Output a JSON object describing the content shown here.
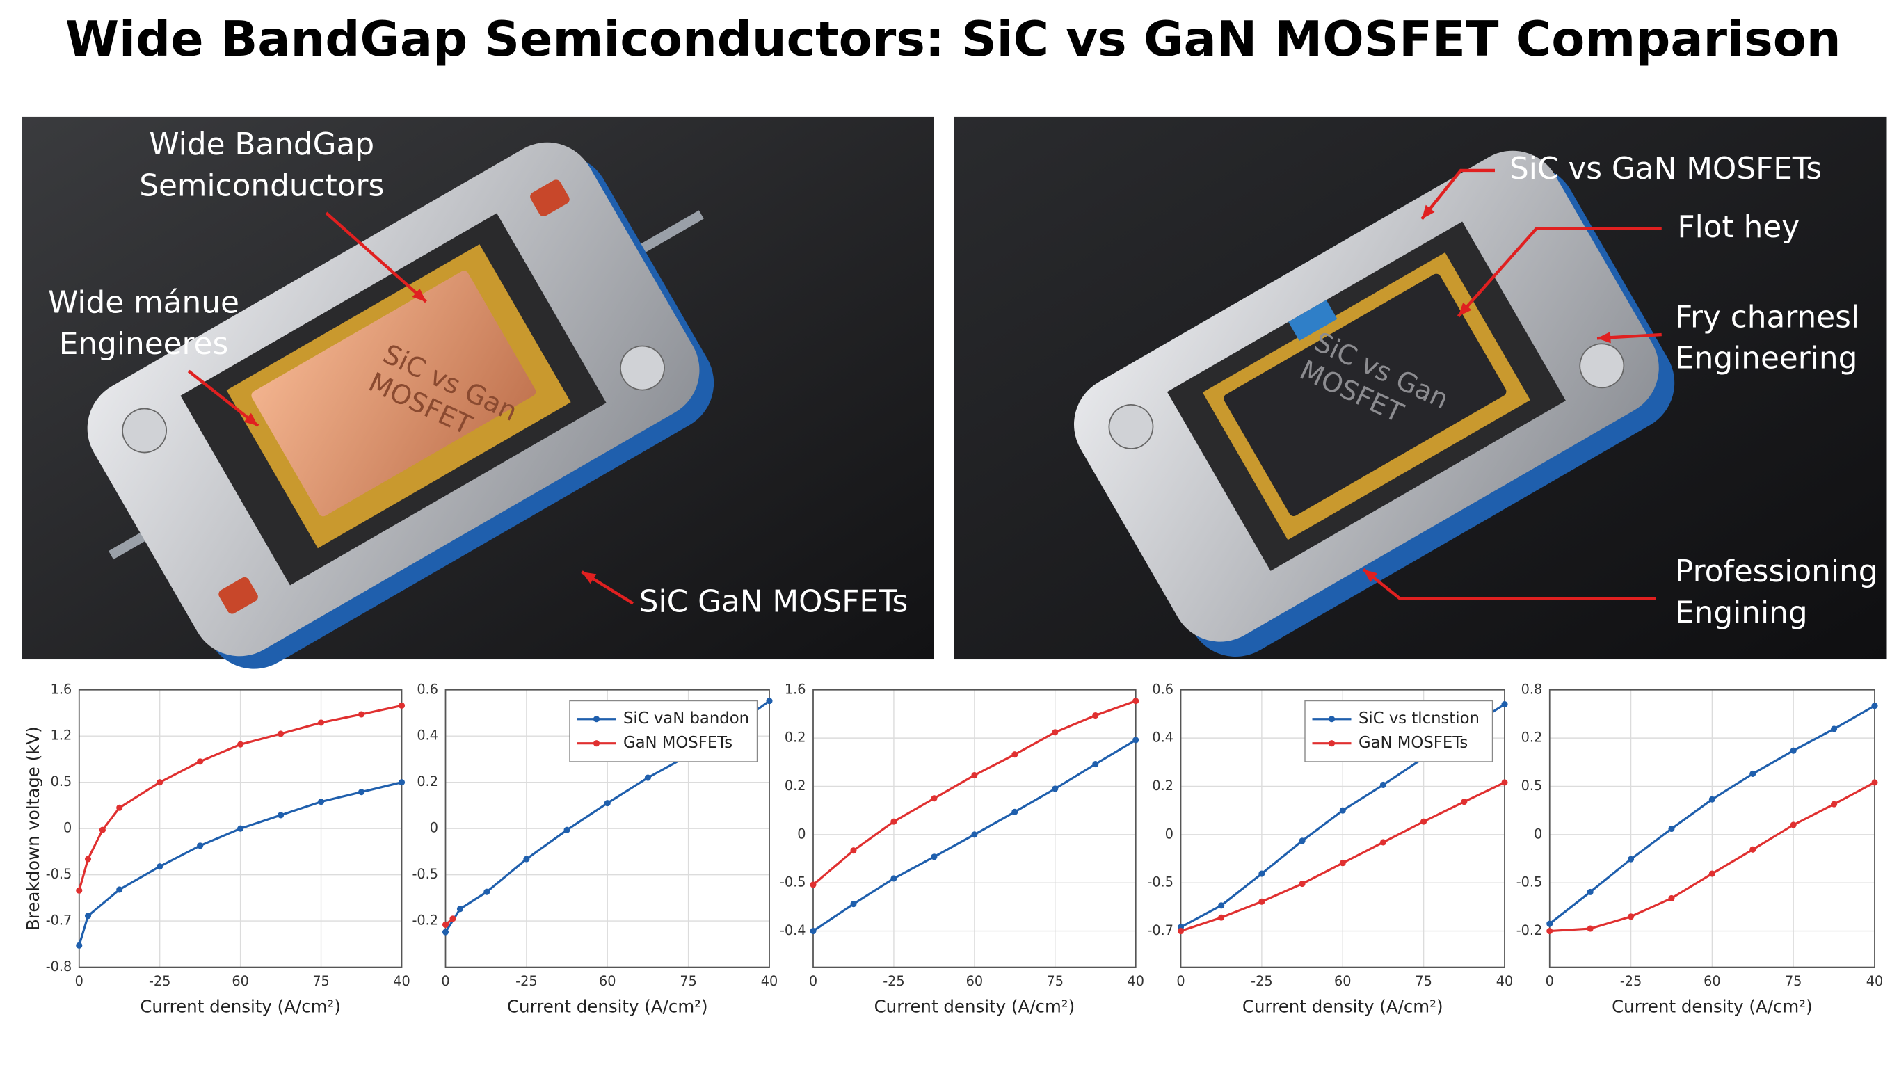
{
  "title": "Wide BandGap Semiconductors: SiC vs GaN MOSFET Comparison",
  "photos": [
    {
      "chip_label": [
        "SiC vs Gan",
        "MOSFET"
      ],
      "callouts": [
        {
          "lines": [
            "Wide BandGap",
            "Semiconductors"
          ]
        },
        {
          "lines": [
            "Wide mánue",
            "Engineeres"
          ]
        },
        {
          "lines": [
            "SiC GaN MOSFETs"
          ]
        }
      ]
    },
    {
      "chip_label": [
        "SiC vs Gan",
        "MOSFET"
      ],
      "callouts": [
        {
          "lines": [
            "SiC vs GaN MOSFETs"
          ]
        },
        {
          "lines": [
            "Flot hey"
          ]
        },
        {
          "lines": [
            "Fry charnesl",
            "Engineering"
          ]
        },
        {
          "lines": [
            "Professioning",
            "Engining"
          ]
        }
      ]
    }
  ],
  "chart_data": [
    {
      "type": "line",
      "ylabel": "Breakdown voltage (kV)",
      "xlabel": "Current density (A/cm²)",
      "grid": true,
      "xlim": [
        0,
        4
      ],
      "xticks": [
        {
          "value": 0,
          "label": "0"
        },
        {
          "value": 1,
          "label": "-25"
        },
        {
          "value": 2,
          "label": "60"
        },
        {
          "value": 3,
          "label": "75"
        },
        {
          "value": 4,
          "label": "40"
        }
      ],
      "ylim": [
        0,
        6
      ],
      "yticks": [
        {
          "value": 0,
          "label": "-0.8"
        },
        {
          "value": 1,
          "label": "-0.7"
        },
        {
          "value": 2,
          "label": "-0.5"
        },
        {
          "value": 3,
          "label": "0"
        },
        {
          "value": 4,
          "label": "0.5"
        },
        {
          "value": 5,
          "label": "1.2"
        },
        {
          "value": 6,
          "label": "1.6"
        }
      ],
      "series": [
        {
          "color": "#1f5fad",
          "x": [
            0,
            0.11,
            0.5,
            1.0,
            1.5,
            2.0,
            2.5,
            3.0,
            3.5,
            4.0
          ],
          "values": [
            0.47,
            1.11,
            1.68,
            2.18,
            2.63,
            3.0,
            3.29,
            3.58,
            3.79,
            4.0
          ]
        },
        {
          "color": "#e03030",
          "x": [
            0,
            0.11,
            0.29,
            0.5,
            1.0,
            1.5,
            2.0,
            2.5,
            3.0,
            3.5,
            4.0
          ],
          "values": [
            1.66,
            2.34,
            2.97,
            3.45,
            4.0,
            4.45,
            4.82,
            5.05,
            5.29,
            5.47,
            5.66
          ]
        }
      ]
    },
    {
      "type": "line",
      "xlabel": "Current density (A/cm²)",
      "grid": true,
      "legend": "upper right",
      "xlim": [
        0,
        4
      ],
      "xticks": [
        {
          "value": 0,
          "label": "0"
        },
        {
          "value": 1,
          "label": "-25"
        },
        {
          "value": 2,
          "label": "60"
        },
        {
          "value": 3,
          "label": "75"
        },
        {
          "value": 4,
          "label": "40"
        }
      ],
      "ylim": [
        0,
        6
      ],
      "yticks": [
        {
          "value": 1,
          "label": "-0.2"
        },
        {
          "value": 2,
          "label": "-0.5"
        },
        {
          "value": 3,
          "label": "0"
        },
        {
          "value": 4,
          "label": "0.2"
        },
        {
          "value": 5,
          "label": "0.4"
        },
        {
          "value": 6,
          "label": "0.6"
        }
      ],
      "series": [
        {
          "name": "SiC vaN bandon",
          "color": "#1f5fad",
          "x": [
            0,
            0.18,
            0.51,
            1.0,
            1.5,
            2.0,
            2.5,
            3.0,
            3.5,
            4.0
          ],
          "values": [
            0.76,
            1.26,
            1.63,
            2.34,
            2.97,
            3.55,
            4.1,
            4.58,
            5.13,
            5.76
          ]
        },
        {
          "name": "GaN MOSFETs",
          "color": "#e03030",
          "x": [
            0,
            0.09
          ],
          "values": [
            0.92,
            1.05
          ]
        }
      ]
    },
    {
      "type": "line",
      "xlabel": "Current density (A/cm²)",
      "grid": true,
      "xlim": [
        0,
        4
      ],
      "xticks": [
        {
          "value": 0,
          "label": "0"
        },
        {
          "value": 1,
          "label": "-25"
        },
        {
          "value": 2,
          "label": "60"
        },
        {
          "value": 3,
          "label": "75"
        },
        {
          "value": 4,
          "label": "40"
        }
      ],
      "ylim": [
        -0.75,
        5
      ],
      "yticks": [
        {
          "value": 0,
          "label": "-0.4"
        },
        {
          "value": 1,
          "label": "-0.5"
        },
        {
          "value": 2,
          "label": "0"
        },
        {
          "value": 3,
          "label": "0.2"
        },
        {
          "value": 4,
          "label": "0.2"
        },
        {
          "value": 5,
          "label": "1.6"
        }
      ],
      "series": [
        {
          "color": "#1f5fad",
          "x": [
            0,
            0.5,
            1.0,
            1.5,
            2.0,
            2.5,
            3.0,
            3.5,
            4.0
          ],
          "values": [
            0,
            0.56,
            1.09,
            1.54,
            2.0,
            2.47,
            2.95,
            3.46,
            3.96
          ]
        },
        {
          "color": "#e03030",
          "x": [
            0,
            0.5,
            1.0,
            1.5,
            2.0,
            2.5,
            3.0,
            3.5,
            4.0
          ],
          "values": [
            0.96,
            1.67,
            2.27,
            2.75,
            3.23,
            3.66,
            4.12,
            4.47,
            4.77
          ]
        }
      ]
    },
    {
      "type": "line",
      "xlabel": "Current density (A/cm²)",
      "grid": true,
      "legend": "upper right",
      "xlim": [
        0,
        4
      ],
      "xticks": [
        {
          "value": 0,
          "label": "0"
        },
        {
          "value": 1,
          "label": "-25"
        },
        {
          "value": 2,
          "label": "60"
        },
        {
          "value": 3,
          "label": "75"
        },
        {
          "value": 4,
          "label": "40"
        }
      ],
      "ylim": [
        -0.75,
        5
      ],
      "yticks": [
        {
          "value": 0,
          "label": "-0.7"
        },
        {
          "value": 1,
          "label": "-0.5"
        },
        {
          "value": 2,
          "label": "0"
        },
        {
          "value": 3,
          "label": "0.2"
        },
        {
          "value": 4,
          "label": "0.4"
        },
        {
          "value": 5,
          "label": "0.6"
        }
      ],
      "series": [
        {
          "name": "SiC vs tlcnstion",
          "color": "#1f5fad",
          "x": [
            0,
            0.5,
            1.0,
            1.5,
            2.0,
            2.5,
            3.0,
            3.5,
            4.0
          ],
          "values": [
            0.08,
            0.53,
            1.19,
            1.87,
            2.5,
            3.03,
            3.59,
            4.17,
            4.7
          ]
        },
        {
          "name": "GaN MOSFETs",
          "color": "#e03030",
          "x": [
            0,
            0.5,
            1.0,
            1.5,
            2.0,
            2.5,
            3.0,
            3.5,
            4.0
          ],
          "values": [
            0,
            0.28,
            0.61,
            0.98,
            1.41,
            1.84,
            2.27,
            2.68,
            3.08
          ]
        }
      ]
    },
    {
      "type": "line",
      "xlabel": "Current density (A/cm²)",
      "grid": true,
      "xlim": [
        0,
        4
      ],
      "xticks": [
        {
          "value": 0,
          "label": "0"
        },
        {
          "value": 1,
          "label": "-25"
        },
        {
          "value": 2,
          "label": "60"
        },
        {
          "value": 3,
          "label": "75"
        },
        {
          "value": 4,
          "label": "40"
        }
      ],
      "ylim": [
        -0.75,
        5
      ],
      "yticks": [
        {
          "value": 0,
          "label": "-0.2"
        },
        {
          "value": 1,
          "label": "-0.5"
        },
        {
          "value": 2,
          "label": "0"
        },
        {
          "value": 3,
          "label": "0.5"
        },
        {
          "value": 4,
          "label": "0.2"
        },
        {
          "value": 5,
          "label": "0.8"
        }
      ],
      "series": [
        {
          "color": "#1f5fad",
          "x": [
            0,
            0.5,
            1.0,
            1.5,
            2.0,
            2.5,
            3.0,
            3.5,
            4.0
          ],
          "values": [
            0.15,
            0.81,
            1.49,
            2.12,
            2.73,
            3.26,
            3.74,
            4.19,
            4.67
          ]
        },
        {
          "color": "#e03030",
          "x": [
            0,
            0.5,
            1.0,
            1.5,
            2.0,
            2.5,
            3.0,
            3.5,
            4.0
          ],
          "values": [
            0,
            0.05,
            0.3,
            0.68,
            1.19,
            1.69,
            2.2,
            2.63,
            3.08
          ]
        }
      ]
    }
  ]
}
